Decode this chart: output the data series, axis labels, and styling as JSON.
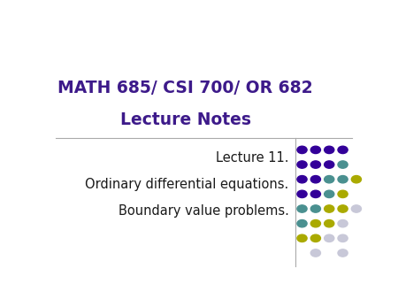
{
  "title_line1": "MATH 685/ CSI 700/ OR 682",
  "title_line2": "Lecture Notes",
  "title_color": "#3d1a8a",
  "body_line1": "Lecture 11.",
  "body_line2": "Ordinary differential equations.",
  "body_line3": "Boundary value problems.",
  "body_color": "#1a1a1a",
  "background_color": "#ffffff",
  "divider_color": "#aaaaaa",
  "dot_colors": {
    "purple": "#330099",
    "teal": "#4a9090",
    "yellow": "#aaaa00",
    "light": "#c8c8d8"
  },
  "title_fontsize": 13.5,
  "body_fontsize": 10.5,
  "dot_grid": [
    [
      "purple",
      "purple",
      "purple",
      "purple",
      null
    ],
    [
      "purple",
      "purple",
      "purple",
      "teal",
      null
    ],
    [
      "purple",
      "purple",
      "teal",
      "teal",
      "yellow"
    ],
    [
      "purple",
      "purple",
      "teal",
      "yellow",
      null
    ],
    [
      "teal",
      "teal",
      "yellow",
      "yellow",
      "light"
    ],
    [
      "teal",
      "yellow",
      "yellow",
      "light",
      null
    ],
    [
      "yellow",
      "yellow",
      "light",
      "light",
      null
    ],
    [
      null,
      "light",
      null,
      "light",
      null
    ]
  ]
}
